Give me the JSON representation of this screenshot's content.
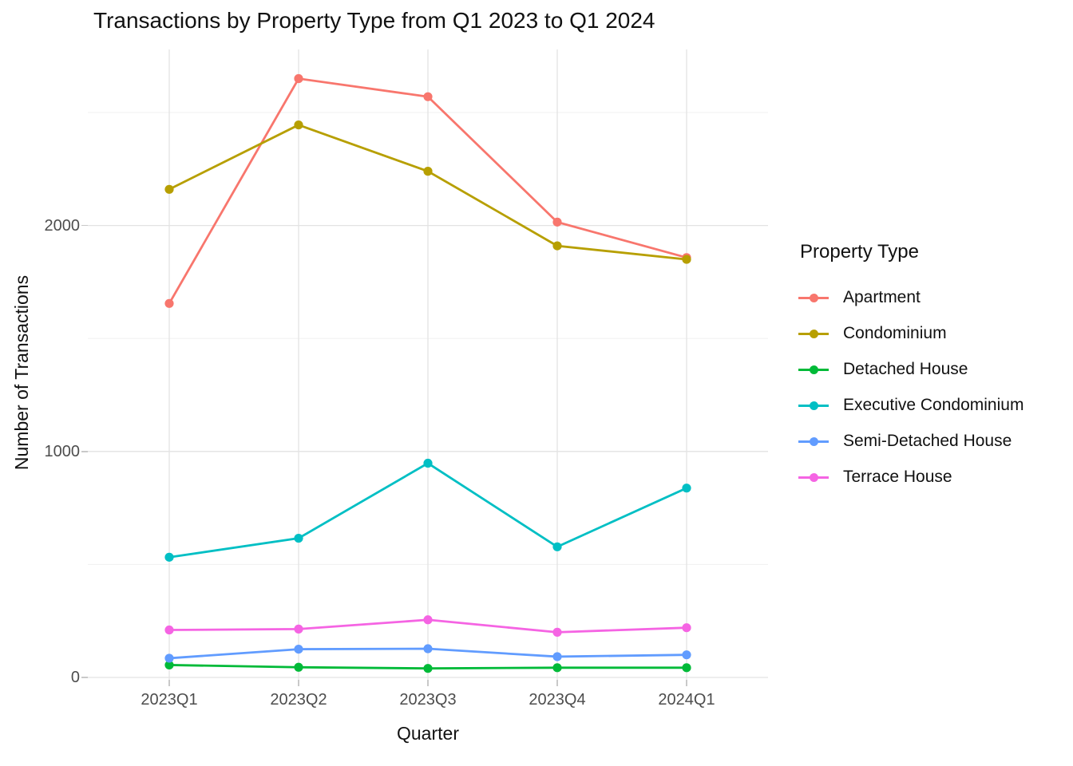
{
  "title": "Transactions by Property Type from Q1 2023 to Q1 2024",
  "chart_data": {
    "type": "line",
    "title": "Transactions by Property Type from Q1 2023 to Q1 2024",
    "xlabel": "Quarter",
    "ylabel": "Number of Transactions",
    "categories": [
      "2023Q1",
      "2023Q2",
      "2023Q3",
      "2023Q4",
      "2024Q1"
    ],
    "series": [
      {
        "name": "Apartment",
        "color": "#F8766D",
        "values": [
          1655,
          2650,
          2570,
          2015,
          1858
        ]
      },
      {
        "name": "Condominium",
        "color": "#B79F00",
        "values": [
          2160,
          2445,
          2240,
          1910,
          1850
        ]
      },
      {
        "name": "Detached House",
        "color": "#00BA38",
        "values": [
          55,
          45,
          40,
          43,
          43
        ]
      },
      {
        "name": "Executive Condominium",
        "color": "#00BFC4",
        "values": [
          532,
          616,
          948,
          578,
          838
        ]
      },
      {
        "name": "Semi-Detached House",
        "color": "#619CFF",
        "values": [
          85,
          125,
          127,
          92,
          100
        ]
      },
      {
        "name": "Terrace House",
        "color": "#F564E3",
        "values": [
          210,
          214,
          255,
          200,
          220
        ]
      }
    ],
    "y_ticks": [
      0,
      1000,
      2000
    ],
    "y_minor_ticks": [
      500,
      1500,
      2500
    ],
    "ylim": [
      -60,
      2780
    ],
    "grid": true,
    "marker": "circle",
    "legend_title": "Property Type",
    "legend_position": "right",
    "colors": {
      "grid_major": "#e3e3e3",
      "grid_minor": "#f0f0f0",
      "tick_label": "#4d4d4d",
      "text": "#111111"
    }
  }
}
